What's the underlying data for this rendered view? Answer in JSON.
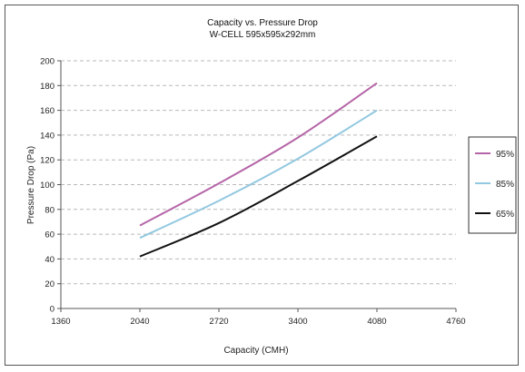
{
  "chart_data": {
    "type": "line",
    "title": "Capacity vs. Pressure Drop",
    "subtitle": "W-CELL 595x595x292mm",
    "xlabel": "Capacity (CMH)",
    "ylabel": "Pressure Drop (Pa)",
    "xlim": [
      1360,
      4760
    ],
    "ylim": [
      0,
      200
    ],
    "xticks": [
      1360,
      2040,
      2720,
      3400,
      4080,
      4760
    ],
    "yticks": [
      0,
      20,
      40,
      60,
      80,
      100,
      120,
      140,
      160,
      180,
      200
    ],
    "grid": "horizontal dashed",
    "legend_position": "right",
    "x": [
      2040,
      2720,
      3400,
      4080
    ],
    "series": [
      {
        "name": "95%",
        "color": "#b565a7",
        "values": [
          67,
          101,
          138,
          182
        ]
      },
      {
        "name": "85%",
        "color": "#92c8e0",
        "values": [
          57,
          87,
          121,
          160
        ]
      },
      {
        "name": "65%",
        "color": "#111111",
        "values": [
          42,
          69,
          103,
          139
        ]
      }
    ]
  }
}
